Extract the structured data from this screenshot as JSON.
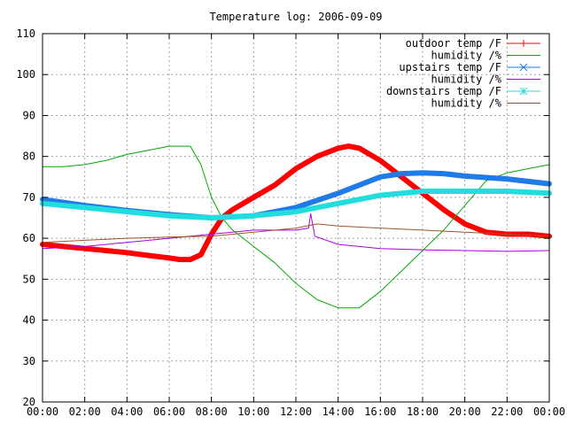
{
  "chart_data": {
    "type": "line",
    "title": "Temperature log: 2006-09-09",
    "xlabel": "",
    "ylabel": "",
    "xlim": [
      "00:00",
      "00:00"
    ],
    "ylim": [
      20,
      110
    ],
    "grid": true,
    "legend_position": "top-right",
    "x_ticks": [
      "00:00",
      "02:00",
      "04:00",
      "06:00",
      "08:00",
      "10:00",
      "12:00",
      "14:00",
      "16:00",
      "18:00",
      "20:00",
      "22:00",
      "00:00"
    ],
    "y_ticks": [
      20,
      30,
      40,
      50,
      60,
      70,
      80,
      90,
      100,
      110
    ],
    "series": [
      {
        "name": "outdoor temp /F",
        "color": "#ff0000",
        "marker": "plus",
        "x": [
          0,
          1,
          2,
          3,
          4,
          5,
          6,
          6.5,
          7,
          7.5,
          8,
          8.5,
          9,
          10,
          11,
          12,
          13,
          14,
          14.5,
          15,
          16,
          17,
          18,
          19,
          20,
          21,
          22,
          23,
          24
        ],
        "values": [
          58.5,
          58,
          57.5,
          57,
          56.5,
          55.8,
          55.2,
          54.8,
          54.8,
          56,
          61,
          65,
          67,
          70,
          73,
          77,
          80,
          82,
          82.5,
          82,
          79,
          75,
          71,
          67,
          63.5,
          61.5,
          61,
          61,
          60.5
        ]
      },
      {
        "name": "humidity /%",
        "color": "#00aa00",
        "marker": "none",
        "x": [
          0,
          1,
          2,
          3,
          4,
          5,
          6,
          7,
          7.5,
          8,
          8.5,
          9,
          10,
          11,
          12,
          13,
          14,
          15,
          16,
          17,
          18,
          19,
          20,
          21,
          22,
          23,
          24
        ],
        "values": [
          77.5,
          77.5,
          78,
          79,
          80.5,
          81.5,
          82.5,
          82.5,
          78,
          70,
          65,
          62,
          58,
          54,
          49,
          45,
          43,
          43,
          47,
          52,
          57,
          62,
          68,
          74,
          76,
          77,
          78
        ]
      },
      {
        "name": "upstairs temp /F",
        "color": "#1e7be8",
        "marker": "cross",
        "x": [
          0,
          2,
          4,
          6,
          8,
          10,
          12,
          14,
          16,
          17,
          18,
          19,
          20,
          22,
          24
        ],
        "values": [
          69.5,
          68,
          66.8,
          65.8,
          65,
          65.5,
          67.5,
          71,
          75,
          75.8,
          76,
          75.8,
          75.2,
          74.5,
          73.3
        ]
      },
      {
        "name": "humidity /%",
        "color": "#aa00dd",
        "marker": "none",
        "x": [
          0,
          2,
          4,
          6,
          8,
          10,
          12,
          12.6,
          12.7,
          12.9,
          14,
          16,
          18,
          20,
          22,
          24
        ],
        "values": [
          57.5,
          58,
          59,
          60,
          61,
          62,
          62,
          62.5,
          66,
          60.5,
          58.5,
          57.5,
          57.2,
          57,
          56.8,
          57
        ]
      },
      {
        "name": "downstairs temp /F",
        "color": "#22dddd",
        "marker": "star",
        "x": [
          0,
          2,
          4,
          6,
          8,
          10,
          12,
          14,
          16,
          18,
          20,
          22,
          24
        ],
        "values": [
          68.5,
          67.5,
          66.5,
          65.5,
          65,
          65.5,
          66.5,
          68.5,
          70.5,
          71.5,
          71.5,
          71.5,
          71
        ]
      },
      {
        "name": "humidity /%",
        "color": "#a0522d",
        "marker": "none",
        "x": [
          0,
          2,
          4,
          6,
          8,
          10,
          12,
          13,
          14,
          16,
          18,
          20,
          22,
          24
        ],
        "values": [
          59,
          59.5,
          60,
          60.3,
          60.5,
          61.5,
          62.5,
          63.5,
          63,
          62.5,
          62,
          61.5,
          61,
          60.5
        ]
      }
    ]
  }
}
